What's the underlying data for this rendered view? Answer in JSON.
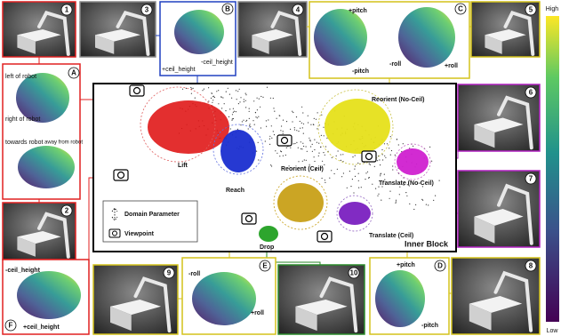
{
  "photos": [
    {
      "badge": "1"
    },
    {
      "badge": "2"
    },
    {
      "badge": "3"
    },
    {
      "badge": "4"
    },
    {
      "badge": "5"
    },
    {
      "badge": "6"
    },
    {
      "badge": "7"
    },
    {
      "badge": "8"
    },
    {
      "badge": "9"
    },
    {
      "badge": "10"
    }
  ],
  "panels": [
    {
      "badge": "A",
      "labels": [
        "left of robot",
        "right of robot",
        "towards robot",
        "away from robot"
      ]
    },
    {
      "badge": "B",
      "labels": [
        "+ceil_height",
        "-ceil_height"
      ]
    },
    {
      "badge": "C",
      "labels": [
        "+pitch",
        "-pitch",
        "-roll",
        "+roll"
      ]
    },
    {
      "badge": "D",
      "labels": [
        "+pitch",
        "-pitch"
      ]
    },
    {
      "badge": "E",
      "labels": [
        "-roll",
        "+roll"
      ]
    },
    {
      "badge": "F",
      "labels": [
        "-ceil_height",
        "+ceil_height"
      ]
    }
  ],
  "inner_block": {
    "title": "Inner Block",
    "clusters": [
      "Lift",
      "Reach",
      "Reorient (Ceil)",
      "Reorient (No-Ceil)",
      "Translate (No-Ceil)",
      "Translate (Ceil)",
      "Drop"
    ],
    "legend": [
      "Domain Parameter",
      "Viewpoint"
    ]
  },
  "colorbar": {
    "high": "High",
    "low": "Low"
  }
}
